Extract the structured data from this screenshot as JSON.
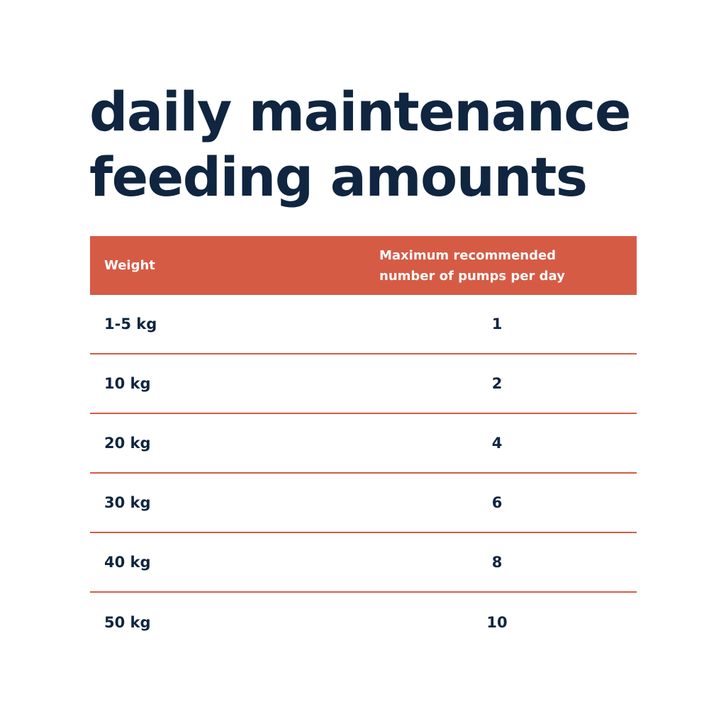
{
  "title": {
    "line1": "daily maintenance",
    "line2": "feeding amounts",
    "color": "#0f2540"
  },
  "table": {
    "header_color": "#d65b45",
    "headers": {
      "weight": "Weight",
      "pumps": "Maximum recommended\nnumber of pumps per day"
    },
    "rows": [
      {
        "weight": "1-5 kg",
        "pumps": "1"
      },
      {
        "weight": "10 kg",
        "pumps": "2"
      },
      {
        "weight": "20 kg",
        "pumps": "4"
      },
      {
        "weight": "30 kg",
        "pumps": "6"
      },
      {
        "weight": "40 kg",
        "pumps": "8"
      },
      {
        "weight": "50 kg",
        "pumps": "10"
      }
    ]
  }
}
